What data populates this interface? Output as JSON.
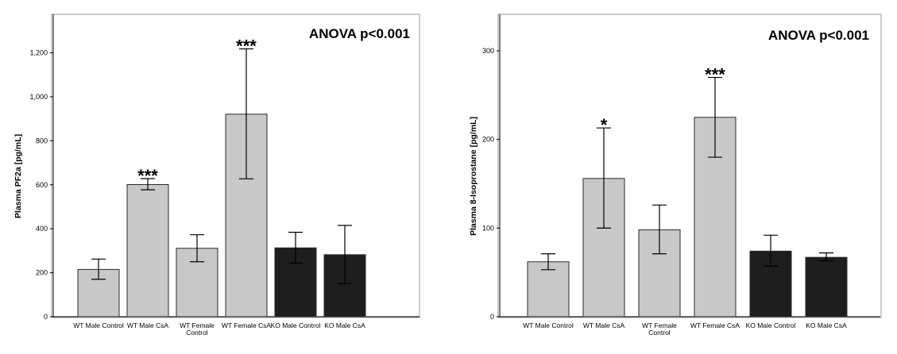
{
  "chart_data": [
    {
      "type": "bar",
      "annotation": "ANOVA p<0.001",
      "ylabel": "Plasma PF2a [pg/mL]",
      "ylim": [
        0,
        1350
      ],
      "yticks": [
        0,
        200,
        400,
        600,
        800,
        1000,
        1200
      ],
      "ytick_labels": [
        "0",
        "200",
        "400",
        "600",
        "800",
        "1,000",
        "1,200"
      ],
      "categories": [
        "WT Male Control",
        "WT Male CsA",
        "WT Female Control",
        "WT Female CsA",
        "KO Male Control",
        "KO Male CsA"
      ],
      "values": [
        215,
        601,
        311,
        921,
        313,
        282
      ],
      "error_low": [
        170,
        577,
        250,
        627,
        244,
        150
      ],
      "error_high": [
        262,
        628,
        373,
        1218,
        384,
        415
      ],
      "significance": [
        "",
        "***",
        "",
        "***",
        "",
        ""
      ],
      "bar_colors": [
        "#c8c8c8",
        "#c8c8c8",
        "#c8c8c8",
        "#c8c8c8",
        "#1e1e1e",
        "#1e1e1e"
      ]
    },
    {
      "type": "bar",
      "annotation": "ANOVA p<0.001",
      "ylabel": "Plasma 8-Isoprostane [pg/mL]",
      "ylim": [
        0,
        335
      ],
      "yticks": [
        0,
        100,
        200,
        300
      ],
      "ytick_labels": [
        "0",
        "100",
        "200",
        "300"
      ],
      "categories": [
        "WT Male Control",
        "WT Male CsA",
        "WT Female Control",
        "WT Female CsA",
        "KO Male Control",
        "KO Male CsA"
      ],
      "values": [
        62,
        156,
        98,
        225,
        74,
        67
      ],
      "error_low": [
        53,
        100,
        71,
        180,
        57,
        63
      ],
      "error_high": [
        71,
        213,
        126,
        270,
        92,
        72
      ],
      "significance": [
        "",
        "*",
        "",
        "***",
        "",
        ""
      ],
      "bar_colors": [
        "#c8c8c8",
        "#c8c8c8",
        "#c8c8c8",
        "#c8c8c8",
        "#1e1e1e",
        "#1e1e1e"
      ]
    }
  ]
}
